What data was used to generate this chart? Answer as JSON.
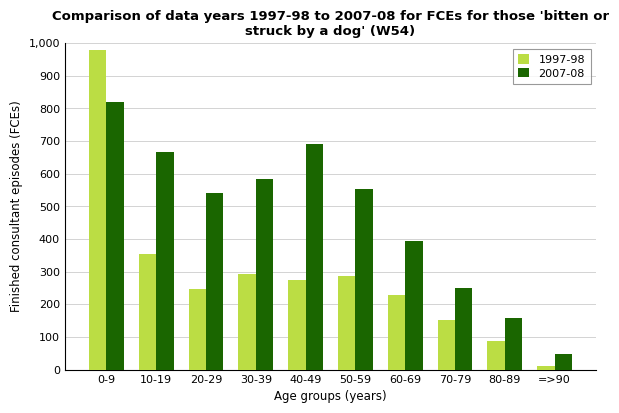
{
  "title": "Comparison of data years 1997-98 to 2007-08 for FCEs for those 'bitten or\nstruck by a dog' (W54)",
  "xlabel": "Age groups (years)",
  "ylabel": "Finished consultant episodes (FCEs)",
  "categories": [
    "0-9",
    "10-19",
    "20-29",
    "30-39",
    "40-49",
    "50-59",
    "60-69",
    "70-79",
    "80-89",
    "=>90"
  ],
  "series_1997": [
    980,
    355,
    248,
    292,
    273,
    288,
    228,
    152,
    88,
    12
  ],
  "series_2007": [
    820,
    668,
    540,
    585,
    692,
    553,
    393,
    251,
    158,
    48
  ],
  "color_1997": "#BBDD44",
  "color_2007": "#1A6600",
  "legend_labels": [
    "1997-98",
    "2007-08"
  ],
  "ylim": [
    0,
    1000
  ],
  "yticks": [
    0,
    100,
    200,
    300,
    400,
    500,
    600,
    700,
    800,
    900,
    1000
  ],
  "ytick_labels": [
    "0",
    "100",
    "200",
    "300",
    "400",
    "500",
    "600",
    "700",
    "800",
    "900",
    "1,000"
  ],
  "title_fontsize": 9.5,
  "axis_label_fontsize": 8.5,
  "tick_fontsize": 8,
  "legend_fontsize": 8
}
